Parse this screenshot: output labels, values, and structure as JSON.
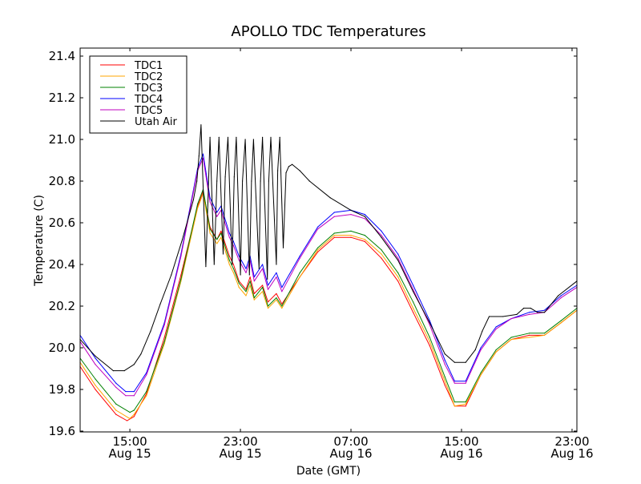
{
  "chart_data": {
    "type": "line",
    "title": "APOLLO TDC Temperatures",
    "xlabel": "Date (GMT)",
    "ylabel": "Temperature (C)",
    "x_unit": "hours since 15:00 Aug 15",
    "xlim": [
      -3.6,
      32.35
    ],
    "ylim": [
      19.6,
      21.4
    ],
    "yticks": [
      "19.6",
      "19.8",
      "20.0",
      "20.2",
      "20.4",
      "20.6",
      "20.8",
      "21.0",
      "21.2",
      "21.4"
    ],
    "ytick_values": [
      19.6,
      19.8,
      20.0,
      20.2,
      20.4,
      20.6,
      20.8,
      21.0,
      21.2,
      21.4
    ],
    "xticks": [
      {
        "value": 0,
        "time": "15:00",
        "date": "Aug 15"
      },
      {
        "value": 8,
        "time": "23:00",
        "date": "Aug 15"
      },
      {
        "value": 16,
        "time": "07:00",
        "date": "Aug 16"
      },
      {
        "value": 24,
        "time": "15:00",
        "date": "Aug 16"
      },
      {
        "value": 32,
        "time": "23:00",
        "date": "Aug 16"
      }
    ],
    "grid": false,
    "legend_position": "top-left",
    "series": [
      {
        "name": "TDC1",
        "color": "#ff0000",
        "x": [
          -3.6,
          -2.5,
          -1.0,
          -0.2,
          0.3,
          1.2,
          2.5,
          3.7,
          4.9,
          5.3,
          5.8,
          6.3,
          6.6,
          7.2,
          7.5,
          7.9,
          8.4,
          8.7,
          9.0,
          9.6,
          10.0,
          10.6,
          11.0,
          12.3,
          13.6,
          14.8,
          16.0,
          17.0,
          18.2,
          19.4,
          20.5,
          21.7,
          22.8,
          23.5,
          24.3,
          25.4,
          26.5,
          27.6,
          28.9,
          30.0,
          31.2,
          32.35
        ],
        "y": [
          19.91,
          19.8,
          19.68,
          19.65,
          19.67,
          19.78,
          20.05,
          20.35,
          20.68,
          20.75,
          20.58,
          20.52,
          20.56,
          20.44,
          20.4,
          20.32,
          20.28,
          20.34,
          20.26,
          20.3,
          20.22,
          20.26,
          20.21,
          20.34,
          20.46,
          20.53,
          20.53,
          20.51,
          20.43,
          20.32,
          20.17,
          20.01,
          19.82,
          19.72,
          19.72,
          19.87,
          19.98,
          20.04,
          20.06,
          20.06,
          20.12,
          20.18
        ]
      },
      {
        "name": "TDC2",
        "color": "#ffa500",
        "x": [
          -3.6,
          -2.5,
          -1.0,
          0.0,
          0.3,
          1.2,
          2.5,
          3.7,
          4.9,
          5.3,
          5.8,
          6.3,
          6.6,
          7.2,
          7.5,
          7.9,
          8.4,
          8.7,
          9.0,
          9.6,
          10.0,
          10.6,
          11.0,
          12.3,
          13.6,
          14.8,
          16.0,
          17.0,
          18.2,
          19.4,
          20.5,
          21.7,
          22.8,
          23.5,
          24.3,
          25.4,
          26.5,
          27.6,
          28.9,
          30.0,
          31.2,
          32.35
        ],
        "y": [
          19.93,
          19.82,
          19.7,
          19.66,
          19.68,
          19.77,
          20.02,
          20.32,
          20.67,
          20.74,
          20.55,
          20.5,
          20.53,
          20.4,
          20.36,
          20.29,
          20.25,
          20.3,
          20.23,
          20.27,
          20.19,
          20.23,
          20.19,
          20.34,
          20.47,
          20.54,
          20.54,
          20.52,
          20.45,
          20.34,
          20.19,
          20.03,
          19.84,
          19.72,
          19.73,
          19.87,
          19.98,
          20.04,
          20.05,
          20.06,
          20.12,
          20.18
        ]
      },
      {
        "name": "TDC3",
        "color": "#008000",
        "x": [
          -3.6,
          -2.5,
          -1.0,
          0.0,
          0.3,
          1.2,
          2.5,
          3.7,
          4.9,
          5.3,
          5.8,
          6.3,
          6.6,
          7.2,
          7.5,
          7.9,
          8.4,
          8.7,
          9.0,
          9.6,
          10.0,
          10.6,
          11.0,
          12.3,
          13.6,
          14.8,
          16.0,
          17.0,
          18.2,
          19.4,
          20.5,
          21.7,
          22.8,
          23.5,
          24.3,
          25.4,
          26.5,
          27.6,
          28.9,
          30.0,
          31.2,
          32.35
        ],
        "y": [
          19.95,
          19.85,
          19.73,
          19.69,
          19.7,
          19.79,
          20.03,
          20.33,
          20.69,
          20.76,
          20.57,
          20.52,
          20.55,
          20.42,
          20.38,
          20.31,
          20.27,
          20.32,
          20.24,
          20.29,
          20.2,
          20.24,
          20.2,
          20.36,
          20.48,
          20.55,
          20.56,
          20.54,
          20.47,
          20.36,
          20.22,
          20.05,
          19.86,
          19.74,
          19.74,
          19.88,
          19.99,
          20.05,
          20.07,
          20.07,
          20.13,
          20.19
        ]
      },
      {
        "name": "TDC4",
        "color": "#0000ff",
        "x": [
          -3.6,
          -2.5,
          -1.0,
          -0.3,
          0.3,
          1.2,
          2.5,
          3.7,
          4.9,
          5.3,
          5.8,
          6.3,
          6.6,
          7.2,
          7.5,
          7.9,
          8.4,
          8.7,
          9.0,
          9.6,
          10.0,
          10.6,
          11.0,
          12.3,
          13.6,
          14.8,
          16.0,
          17.0,
          18.2,
          19.4,
          20.5,
          21.7,
          22.8,
          23.5,
          24.3,
          25.4,
          26.5,
          27.6,
          28.9,
          30.0,
          31.2,
          32.35
        ],
        "y": [
          20.06,
          19.95,
          19.83,
          19.79,
          19.79,
          19.88,
          20.12,
          20.45,
          20.86,
          20.93,
          20.72,
          20.65,
          20.68,
          20.55,
          20.51,
          20.44,
          20.38,
          20.44,
          20.34,
          20.4,
          20.3,
          20.36,
          20.29,
          20.44,
          20.58,
          20.65,
          20.66,
          20.64,
          20.56,
          20.45,
          20.3,
          20.13,
          19.94,
          19.84,
          19.84,
          20.0,
          20.1,
          20.14,
          20.17,
          20.18,
          20.25,
          20.3
        ]
      },
      {
        "name": "TDC5",
        "color": "#bf00bf",
        "x": [
          -3.6,
          -2.5,
          -1.0,
          -0.3,
          0.3,
          1.2,
          2.5,
          3.7,
          4.9,
          5.3,
          5.8,
          6.3,
          6.6,
          7.2,
          7.5,
          7.9,
          8.4,
          8.7,
          9.0,
          9.6,
          10.0,
          10.6,
          11.0,
          12.3,
          13.6,
          14.8,
          16.0,
          17.0,
          18.2,
          19.4,
          20.5,
          21.7,
          22.8,
          23.5,
          24.3,
          25.4,
          26.5,
          27.6,
          28.9,
          30.0,
          31.2,
          32.35
        ],
        "y": [
          20.03,
          19.92,
          19.81,
          19.77,
          19.77,
          19.87,
          20.11,
          20.44,
          20.85,
          20.91,
          20.7,
          20.63,
          20.66,
          20.53,
          20.49,
          20.42,
          20.36,
          20.42,
          20.32,
          20.38,
          20.28,
          20.34,
          20.27,
          20.43,
          20.57,
          20.63,
          20.64,
          20.62,
          20.54,
          20.43,
          20.28,
          20.11,
          19.92,
          19.83,
          19.83,
          19.99,
          20.09,
          20.14,
          20.16,
          20.17,
          20.24,
          20.29
        ]
      },
      {
        "name": "Utah Air",
        "color": "#000000",
        "x": [
          -3.6,
          -2.5,
          -1.2,
          -0.4,
          0.3,
          0.8,
          1.5,
          2.2,
          3.0,
          3.8,
          4.6,
          4.85,
          5.0,
          5.15,
          5.5,
          5.65,
          5.8,
          6.1,
          6.3,
          6.45,
          6.75,
          6.9,
          7.1,
          7.4,
          7.55,
          7.7,
          8.0,
          8.15,
          8.35,
          8.65,
          8.8,
          8.95,
          9.35,
          9.45,
          9.6,
          9.95,
          10.05,
          10.2,
          10.6,
          10.7,
          10.85,
          11.1,
          11.3,
          11.5,
          11.75,
          12.3,
          13.0,
          14.5,
          16.0,
          17.0,
          18.2,
          19.4,
          20.5,
          21.7,
          22.8,
          23.5,
          24.3,
          25.0,
          25.5,
          26.0,
          27.0,
          28.0,
          28.5,
          29.0,
          29.5,
          30.0,
          31.0,
          32.35
        ],
        "y": [
          20.04,
          19.96,
          19.89,
          19.89,
          19.92,
          19.97,
          20.08,
          20.21,
          20.35,
          20.52,
          20.71,
          20.8,
          20.92,
          21.07,
          20.39,
          20.7,
          21.01,
          20.4,
          20.8,
          21.01,
          20.45,
          20.82,
          21.01,
          20.4,
          20.82,
          21.01,
          20.35,
          20.8,
          21.0,
          20.35,
          20.8,
          21.0,
          20.38,
          20.8,
          21.01,
          20.33,
          20.8,
          21.01,
          20.4,
          20.85,
          21.01,
          20.48,
          20.84,
          20.87,
          20.88,
          20.85,
          20.8,
          20.72,
          20.66,
          20.63,
          20.53,
          20.42,
          20.27,
          20.12,
          19.97,
          19.93,
          19.93,
          19.99,
          20.08,
          20.15,
          20.15,
          20.16,
          20.19,
          20.19,
          20.17,
          20.17,
          20.25,
          20.32
        ]
      }
    ]
  }
}
